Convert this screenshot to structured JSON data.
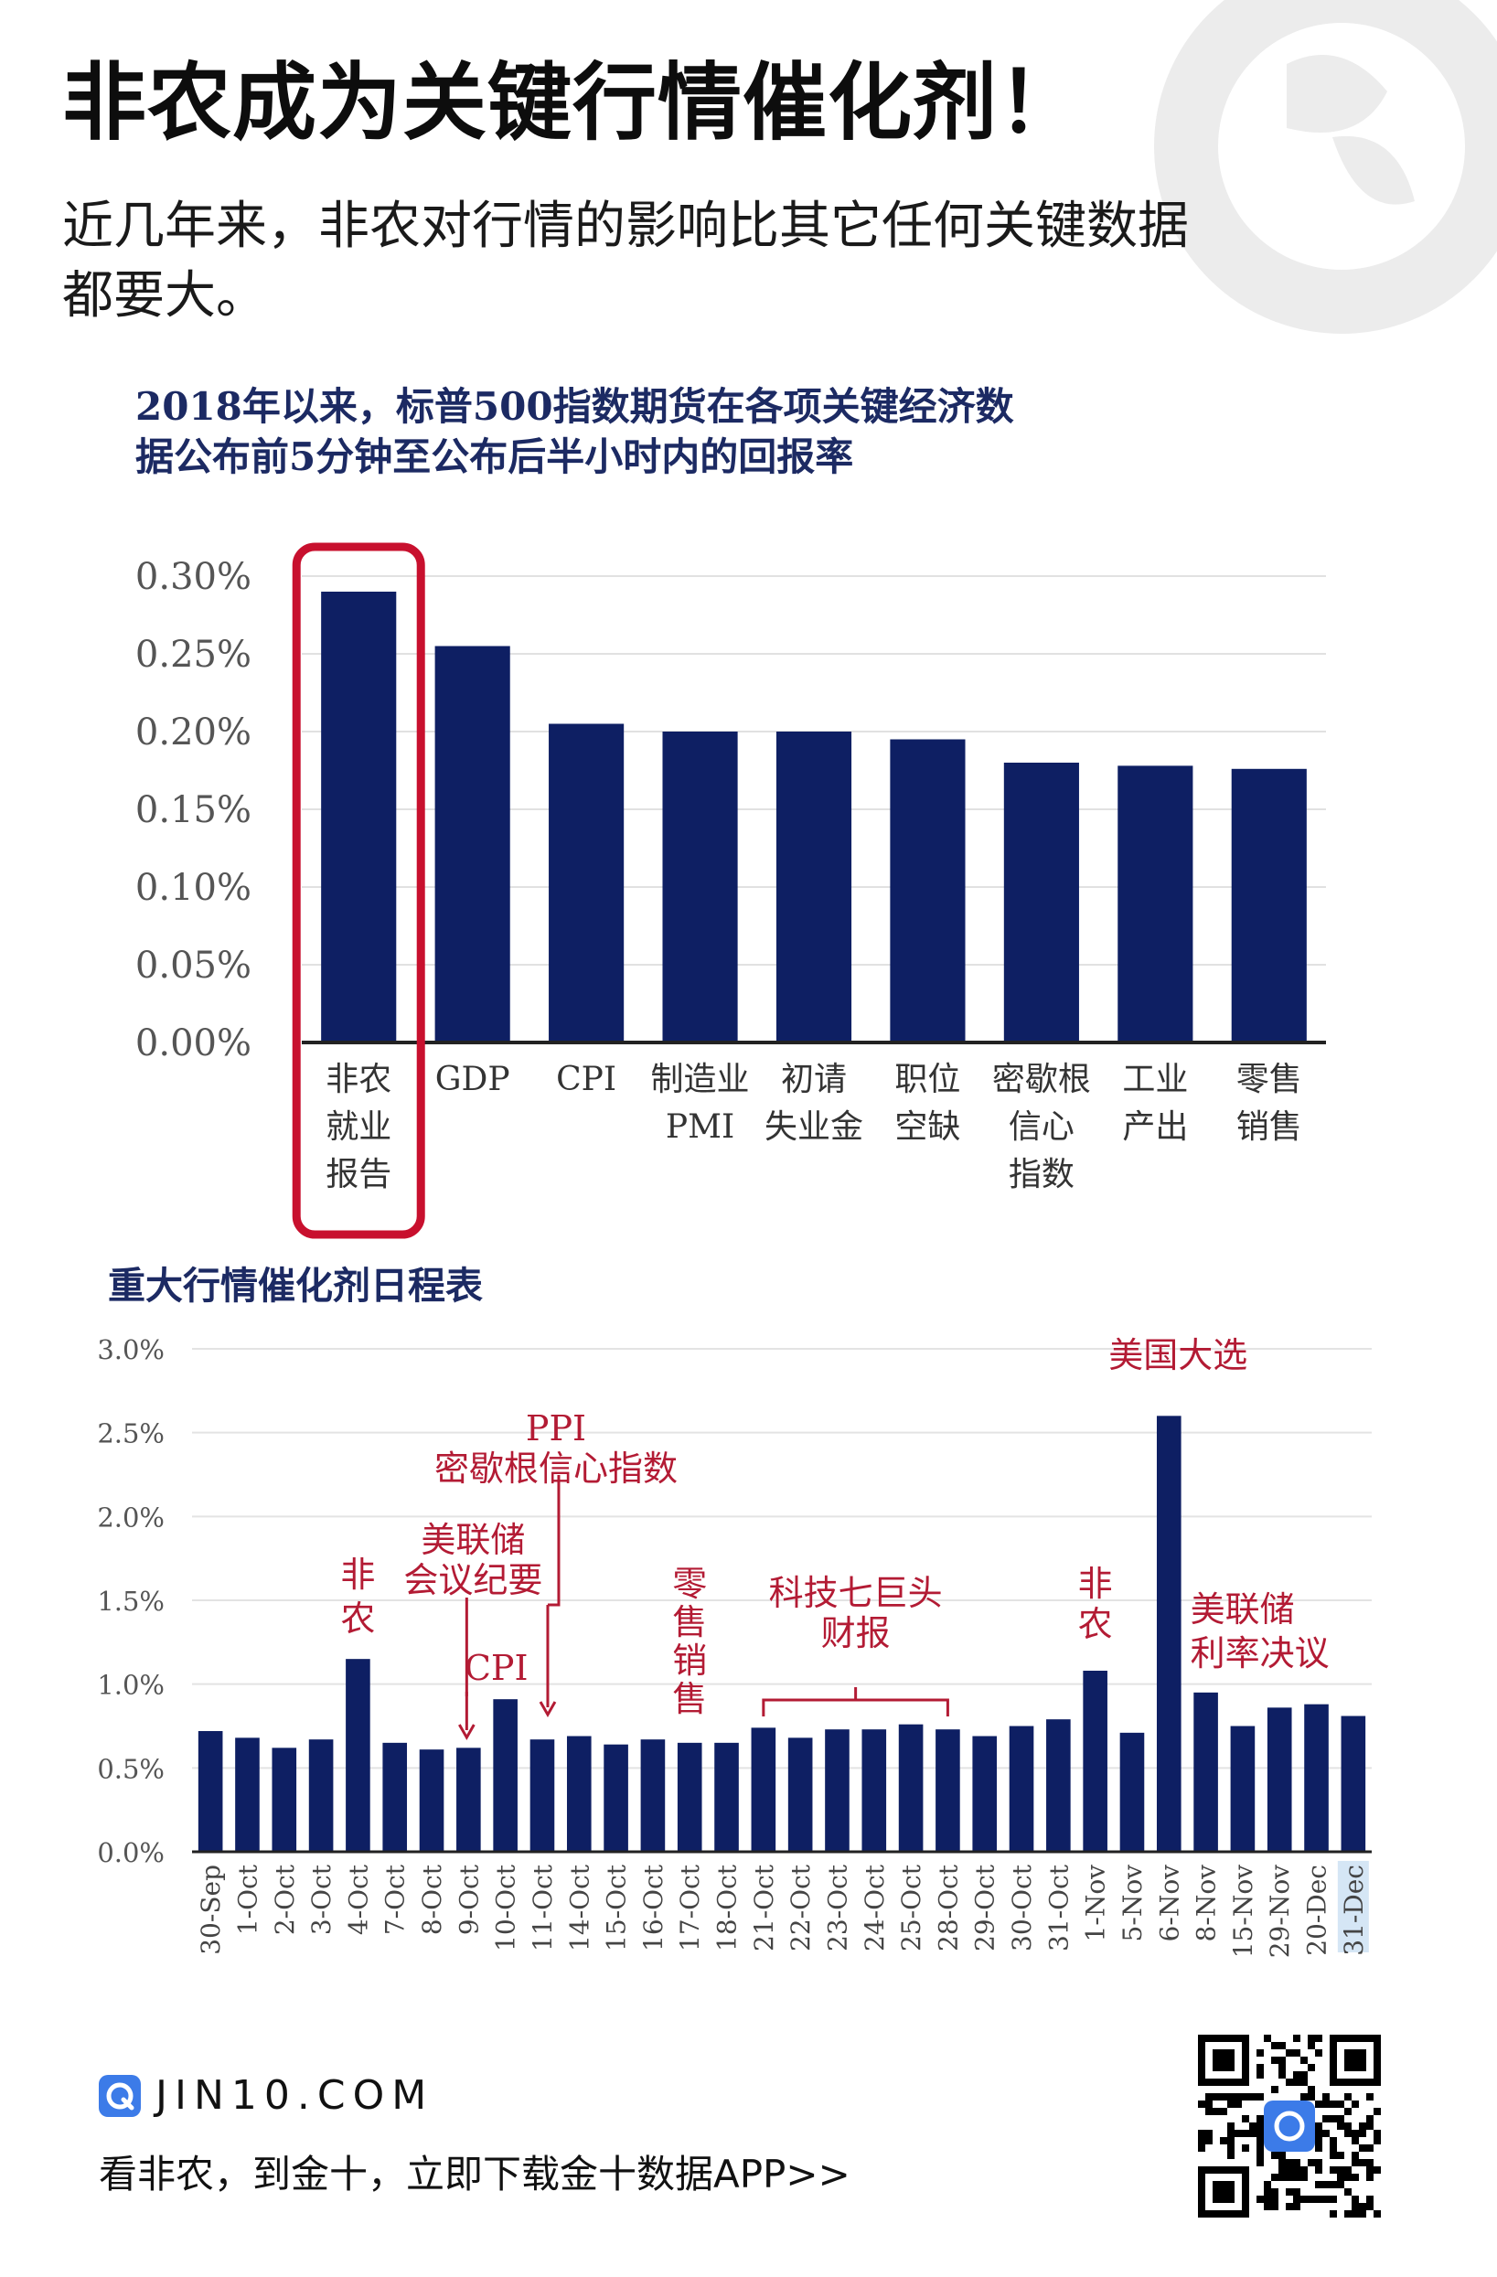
{
  "headline": "非农成为关键行情催化剂！",
  "subhead": "近几年来，非农对行情的影响比其它任何关键数据都要大。",
  "chart_data": [
    {
      "type": "bar",
      "title": "2018年以来，标普500指数期货在各项关键经济数据公布前5分钟至公布后半小时内的回报率",
      "categories": [
        [
          "非农",
          "就业",
          "报告"
        ],
        [
          "GDP"
        ],
        [
          "CPI"
        ],
        [
          "制造业",
          "PMI"
        ],
        [
          "初请",
          "失业金"
        ],
        [
          "职位",
          "空缺"
        ],
        [
          "密歇根",
          "信心",
          "指数"
        ],
        [
          "工业",
          "产出"
        ],
        [
          "零售",
          "销售"
        ]
      ],
      "values": [
        0.29,
        0.255,
        0.205,
        0.2,
        0.2,
        0.195,
        0.18,
        0.178,
        0.176
      ],
      "y_ticks": [
        "0.00%",
        "0.05%",
        "0.10%",
        "0.15%",
        "0.20%",
        "0.25%",
        "0.30%"
      ],
      "ylim": [
        0,
        0.3
      ],
      "grid": true,
      "highlight_index": 0,
      "bar_color": "#0e1f63",
      "highlight_color": "#c8102e"
    },
    {
      "type": "bar",
      "title": "重大行情催化剂日程表",
      "categories": [
        "30-Sep",
        "1-Oct",
        "2-Oct",
        "3-Oct",
        "4-Oct",
        "7-Oct",
        "8-Oct",
        "9-Oct",
        "10-Oct",
        "11-Oct",
        "14-Oct",
        "15-Oct",
        "16-Oct",
        "17-Oct",
        "18-Oct",
        "21-Oct",
        "22-Oct",
        "23-Oct",
        "24-Oct",
        "25-Oct",
        "28-Oct",
        "29-Oct",
        "30-Oct",
        "31-Oct",
        "1-Nov",
        "5-Nov",
        "6-Nov",
        "8-Nov",
        "15-Nov",
        "29-Nov",
        "20-Dec",
        "31-Dec"
      ],
      "values": [
        0.72,
        0.68,
        0.62,
        0.67,
        1.15,
        0.65,
        0.61,
        0.62,
        0.91,
        0.67,
        0.69,
        0.64,
        0.67,
        0.65,
        0.65,
        0.74,
        0.68,
        0.73,
        0.73,
        0.76,
        0.73,
        0.69,
        0.75,
        0.79,
        1.08,
        0.71,
        2.6,
        0.95,
        0.75,
        0.86,
        0.88,
        0.81
      ],
      "y_ticks": [
        "0.0%",
        "0.5%",
        "1.0%",
        "1.5%",
        "2.0%",
        "2.5%",
        "3.0%"
      ],
      "ylim": [
        0,
        3.0
      ],
      "grid": true,
      "highlighted_tick": "31-Dec",
      "annotations": [
        {
          "text": [
            "非",
            "农"
          ],
          "category": "4-Oct"
        },
        {
          "text": [
            "美联储",
            "会议纪要"
          ],
          "category": "9-Oct"
        },
        {
          "text": [
            "PPI",
            "密歇根信心指数"
          ],
          "category": "11-Oct"
        },
        {
          "text": [
            "CPI"
          ],
          "category": "10-Oct"
        },
        {
          "text": [
            "零",
            "售",
            "销",
            "售"
          ],
          "category": "17-Oct"
        },
        {
          "text": [
            "科技七巨头",
            "财报"
          ],
          "category": "21-Oct to 28-Oct"
        },
        {
          "text": [
            "非",
            "农"
          ],
          "category": "1-Nov"
        },
        {
          "text": [
            "美国大选"
          ],
          "category": "6-Nov"
        },
        {
          "text": [
            "美联储",
            "利率决议"
          ],
          "category": "8-Nov"
        }
      ],
      "bar_color": "#0e1f63",
      "annotation_color": "#b31b34"
    }
  ],
  "footer": {
    "brand": "JIN10.COM",
    "tagline": "看非农，到金十，立即下载金十数据APP>>",
    "logo_icon": "jin10-logo-icon",
    "qr_icon": "qr-code-icon"
  }
}
